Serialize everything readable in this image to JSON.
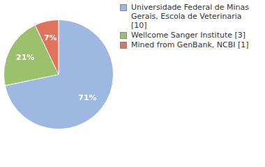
{
  "chart_data": {
    "type": "pie",
    "categories": [
      "Universidade Federal de Minas Gerais, Escola de Veterinaria [10]",
      "Wellcome Sanger Institute [3]",
      "Mined from GenBank, NCBI [1]"
    ],
    "values": [
      71,
      21,
      7
    ],
    "value_labels": [
      "71%",
      "21%",
      "7%"
    ],
    "colors": [
      "#9db9e1",
      "#9bc16d",
      "#df735b"
    ],
    "data_labels": true,
    "legend": "right"
  }
}
